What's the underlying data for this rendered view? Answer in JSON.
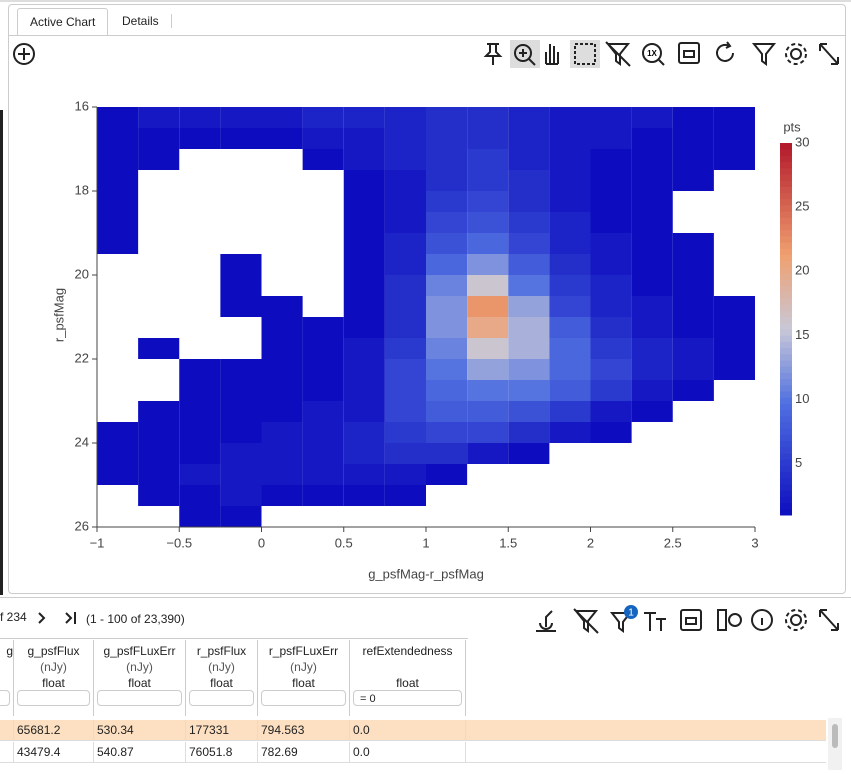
{
  "tabs": [
    "Active Chart",
    "Details"
  ],
  "chart_data": {
    "type": "heatmap",
    "xlabel": "g_psfMag-r_psfMag",
    "ylabel": "r_psfMag",
    "xlim": [
      -1,
      3
    ],
    "ylim": [
      26,
      16
    ],
    "xticks": [
      {
        "value": -1,
        "label": "−1"
      },
      {
        "value": -0.5,
        "label": "−0.5"
      },
      0,
      0.5,
      1,
      1.5,
      2,
      2.5,
      3
    ],
    "yticks": [
      16,
      18,
      20,
      22,
      24,
      26
    ],
    "xbins": [
      -1,
      -0.75,
      -0.5,
      -0.25,
      0,
      0.25,
      0.5,
      0.75,
      1,
      1.25,
      1.5,
      1.75,
      2,
      2.25,
      2.5,
      2.75,
      3
    ],
    "ybins": [
      16,
      16.5,
      17,
      17.5,
      18,
      18.5,
      19,
      19.5,
      20,
      20.5,
      21,
      21.5,
      22,
      22.5,
      23,
      23.5,
      24,
      24.5,
      25,
      25.5,
      26
    ],
    "z": [
      [
        1,
        2,
        2,
        2,
        2,
        3,
        3,
        3,
        4,
        4,
        3,
        2,
        2,
        2,
        1,
        1
      ],
      [
        1,
        1,
        1,
        1,
        1,
        2,
        2,
        3,
        4,
        4,
        3,
        2,
        2,
        1,
        1,
        1
      ],
      [
        1,
        1,
        null,
        null,
        null,
        1,
        2,
        3,
        4,
        5,
        3,
        2,
        1,
        1,
        1,
        1
      ],
      [
        1,
        null,
        null,
        null,
        null,
        null,
        1,
        2,
        4,
        5,
        4,
        2,
        1,
        1,
        1,
        null
      ],
      [
        1,
        null,
        null,
        null,
        null,
        null,
        1,
        2,
        5,
        6,
        4,
        2,
        1,
        1,
        null,
        null
      ],
      [
        1,
        null,
        null,
        null,
        null,
        null,
        1,
        2,
        6,
        7,
        5,
        3,
        1,
        1,
        null,
        null
      ],
      [
        1,
        null,
        null,
        null,
        null,
        null,
        1,
        3,
        7,
        9,
        6,
        3,
        2,
        1,
        1,
        null
      ],
      [
        null,
        null,
        null,
        1,
        null,
        null,
        1,
        3,
        9,
        12,
        8,
        4,
        2,
        1,
        1,
        null
      ],
      [
        null,
        null,
        null,
        1,
        null,
        null,
        1,
        4,
        11,
        16,
        10,
        5,
        3,
        1,
        1,
        null
      ],
      [
        null,
        null,
        null,
        1,
        1,
        null,
        1,
        4,
        12,
        22,
        13,
        6,
        3,
        2,
        1,
        1
      ],
      [
        null,
        null,
        null,
        null,
        1,
        1,
        1,
        4,
        12,
        20,
        14,
        8,
        4,
        2,
        1,
        1
      ],
      [
        null,
        1,
        null,
        null,
        1,
        1,
        2,
        5,
        11,
        16,
        14,
        9,
        5,
        3,
        2,
        1
      ],
      [
        null,
        null,
        1,
        1,
        1,
        1,
        2,
        6,
        10,
        13,
        12,
        9,
        6,
        3,
        2,
        1
      ],
      [
        null,
        null,
        1,
        1,
        1,
        1,
        2,
        6,
        9,
        10,
        10,
        8,
        5,
        2,
        1,
        null
      ],
      [
        null,
        1,
        1,
        1,
        1,
        2,
        2,
        6,
        8,
        8,
        7,
        5,
        2,
        1,
        null,
        null
      ],
      [
        1,
        1,
        1,
        1,
        2,
        2,
        3,
        5,
        6,
        6,
        4,
        2,
        1,
        null,
        null,
        null
      ],
      [
        1,
        1,
        1,
        2,
        2,
        2,
        3,
        4,
        4,
        2,
        1,
        null,
        null,
        null,
        null,
        null
      ],
      [
        1,
        1,
        2,
        2,
        2,
        2,
        2,
        2,
        1,
        null,
        null,
        null,
        null,
        null,
        null,
        null
      ],
      [
        null,
        1,
        1,
        2,
        1,
        1,
        1,
        1,
        null,
        null,
        null,
        null,
        null,
        null,
        null,
        null
      ],
      [
        null,
        null,
        1,
        1,
        null,
        null,
        null,
        null,
        null,
        null,
        null,
        null,
        null,
        null,
        null,
        null
      ]
    ],
    "colorbar": {
      "title": "pts",
      "range": [
        1,
        30
      ],
      "ticks": [
        5,
        10,
        15,
        20,
        25,
        30
      ]
    },
    "colorscale": [
      [
        0,
        "#0d0dbf"
      ],
      [
        0.3,
        "#4f6fe0"
      ],
      [
        0.5,
        "#c8c8d8"
      ],
      [
        0.7,
        "#f0a070"
      ],
      [
        1,
        "#b2182b"
      ]
    ]
  },
  "table": {
    "pager_left": "f 234",
    "pager_range": "(1 - 100 of 23,390)",
    "filter_count": "1",
    "first_col_tail": "g",
    "columns": [
      {
        "name": "g_psfFlux",
        "unit": "(nJy)",
        "type": "float"
      },
      {
        "name": "g_psfFLuxErr",
        "unit": "(nJy)",
        "type": "float"
      },
      {
        "name": "r_psfFlux",
        "unit": "(nJy)",
        "type": "float"
      },
      {
        "name": "r_psfFLuxErr",
        "unit": "(nJy)",
        "type": "float"
      },
      {
        "name": "refExtendedness",
        "type": "float",
        "filter": "= 0"
      }
    ],
    "rows": [
      [
        "65681.2",
        "530.34",
        "177331",
        "794.563",
        "0.0"
      ],
      [
        "43479.4",
        "540.87",
        "76051.8",
        "782.69",
        "0.0"
      ]
    ]
  }
}
